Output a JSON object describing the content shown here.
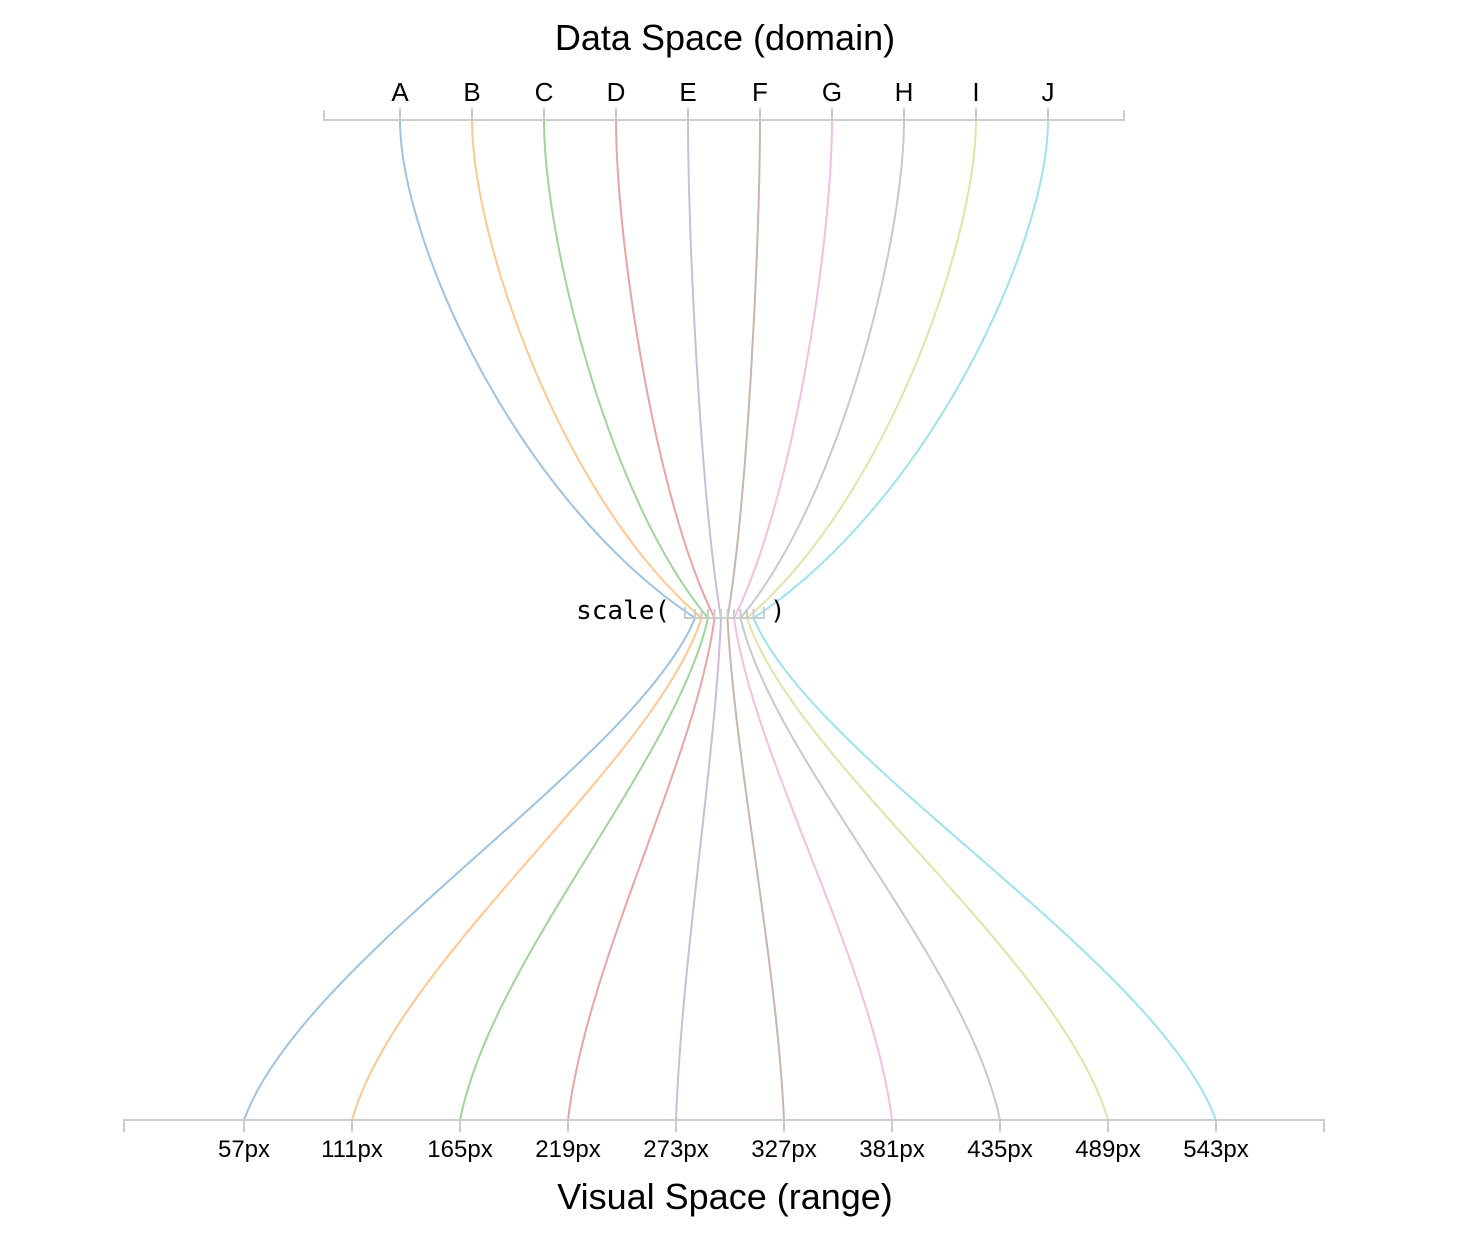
{
  "top_title": "Data Space (domain)",
  "bottom_title": "Visual Space (range)",
  "scale_label": "scale(",
  "scale_close": ")",
  "mapping": [
    {
      "domain": "A",
      "range": "57px",
      "range_value": 57,
      "color": "#9dc3e0"
    },
    {
      "domain": "B",
      "range": "111px",
      "range_value": 111,
      "color": "#ffc890"
    },
    {
      "domain": "C",
      "range": "165px",
      "range_value": 165,
      "color": "#a0d59a"
    },
    {
      "domain": "D",
      "range": "219px",
      "range_value": 219,
      "color": "#eda3a3"
    },
    {
      "domain": "E",
      "range": "273px",
      "range_value": 273,
      "color": "#cbbcdb"
    },
    {
      "domain": "F",
      "range": "327px",
      "range_value": 327,
      "color": "#cbb4ac"
    },
    {
      "domain": "G",
      "range": "381px",
      "range_value": 381,
      "color": "#f4bfe1"
    },
    {
      "domain": "H",
      "range": "435px",
      "range_value": 435,
      "color": "#c9c9c9"
    },
    {
      "domain": "I",
      "range": "489px",
      "range_value": 489,
      "color": "#e2e3a8"
    },
    {
      "domain": "J",
      "range": "543px",
      "range_value": 543,
      "color": "#9ee2ec"
    }
  ]
}
